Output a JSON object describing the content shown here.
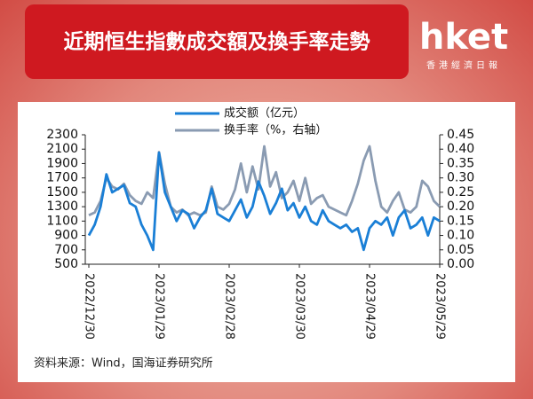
{
  "header": {
    "title": "近期恒生指數成交額及換手率走勢",
    "logo": "hket",
    "logo_sub": "香港經濟日報"
  },
  "chart_data": {
    "type": "line",
    "categories": [
      "2022/12/30",
      null,
      null,
      null,
      null,
      null,
      null,
      null,
      null,
      null,
      null,
      null,
      "2023/01/29",
      null,
      null,
      null,
      null,
      null,
      null,
      null,
      null,
      null,
      null,
      null,
      "2023/02/28",
      null,
      null,
      null,
      null,
      null,
      null,
      null,
      null,
      null,
      null,
      null,
      "2023/03/30",
      null,
      null,
      null,
      null,
      null,
      null,
      null,
      null,
      null,
      null,
      null,
      "2023/04/29",
      null,
      null,
      null,
      null,
      null,
      null,
      null,
      null,
      null,
      null,
      null,
      "2023/05/29"
    ],
    "series": [
      {
        "name": "成交额（亿元）",
        "color": "#1a7fd6",
        "values": [
          900,
          1050,
          1300,
          1750,
          1500,
          1550,
          1600,
          1350,
          1300,
          1050,
          900,
          700,
          2050,
          1500,
          1300,
          1100,
          1250,
          1200,
          1000,
          1150,
          1250,
          1550,
          1200,
          1150,
          1100,
          1250,
          1400,
          1150,
          1300,
          1650,
          1450,
          1200,
          1350,
          1550,
          1250,
          1350,
          1150,
          1300,
          1100,
          1050,
          1250,
          1100,
          1050,
          1000,
          1050,
          950,
          1000,
          700,
          1000,
          1100,
          1050,
          1150,
          900,
          1150,
          1250,
          1000,
          1050,
          1150,
          900,
          1150,
          1100
        ]
      },
      {
        "name": "换手率（%，右轴）",
        "color": "#8a9bb2",
        "axis": "y2",
        "values": [
          0.17,
          0.18,
          0.22,
          0.3,
          0.27,
          0.26,
          0.28,
          0.24,
          0.22,
          0.21,
          0.25,
          0.23,
          0.39,
          0.28,
          0.2,
          0.18,
          0.19,
          0.17,
          0.18,
          0.17,
          0.18,
          0.27,
          0.2,
          0.19,
          0.21,
          0.26,
          0.35,
          0.25,
          0.34,
          0.26,
          0.41,
          0.27,
          0.32,
          0.23,
          0.25,
          0.29,
          0.22,
          0.3,
          0.21,
          0.23,
          0.24,
          0.2,
          0.19,
          0.18,
          0.17,
          0.22,
          0.28,
          0.36,
          0.41,
          0.29,
          0.2,
          0.18,
          0.22,
          0.25,
          0.19,
          0.18,
          0.2,
          0.29,
          0.27,
          0.22,
          0.2
        ]
      }
    ],
    "ylim": [
      500,
      2300
    ],
    "yticks": [
      500,
      700,
      900,
      1100,
      1300,
      1500,
      1700,
      1900,
      2100,
      2300
    ],
    "y2lim": [
      0,
      0.45
    ],
    "y2ticks": [
      {
        "value": 0,
        "label": "0.00"
      },
      0.05,
      {
        "value": 0.1,
        "label": "0.10"
      },
      0.15,
      {
        "value": 0.2,
        "label": "0.20"
      },
      0.25,
      {
        "value": 0.3,
        "label": "0.30"
      },
      0.35,
      {
        "value": 0.4,
        "label": "0.40"
      },
      0.45
    ],
    "source": "资料来源：Wind，国海证券研究所"
  }
}
